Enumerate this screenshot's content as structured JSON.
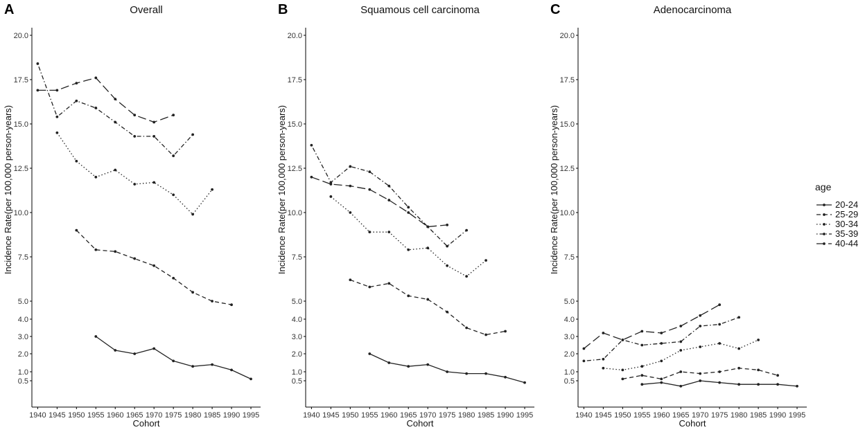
{
  "chart_data": [
    {
      "type": "line",
      "letter": "A",
      "title": "Overall",
      "xlabel": "Cohort",
      "ylabel": "Incidence Rate(per 100,000 person-years)",
      "x_ticks": [
        1940,
        1945,
        1950,
        1955,
        1960,
        1965,
        1970,
        1975,
        1980,
        1985,
        1990,
        1995
      ],
      "y_ticks": [
        0.5,
        1.0,
        2.0,
        3.0,
        4.0,
        5.0,
        7.5,
        10.0,
        12.5,
        15.0,
        17.5,
        20.0
      ],
      "y_tick_labels": [
        "0.5",
        "1.0",
        "2.0",
        "3.0",
        "4.0",
        "5.0",
        "7.5",
        "10.0",
        "12.5",
        "15.0",
        "17.5",
        "20.0"
      ],
      "series": [
        {
          "name": "20-24",
          "x": [
            1955,
            1960,
            1965,
            1970,
            1975,
            1980,
            1985,
            1990,
            1995
          ],
          "values": [
            3.0,
            2.2,
            2.0,
            2.3,
            1.6,
            1.3,
            1.4,
            1.1,
            0.6
          ]
        },
        {
          "name": "25-29",
          "x": [
            1950,
            1955,
            1960,
            1965,
            1970,
            1975,
            1980,
            1985,
            1990
          ],
          "values": [
            9.0,
            7.9,
            7.8,
            7.4,
            7.0,
            6.3,
            5.5,
            5.0,
            4.8
          ]
        },
        {
          "name": "30-34",
          "x": [
            1945,
            1950,
            1955,
            1960,
            1965,
            1970,
            1975,
            1980,
            1985
          ],
          "values": [
            14.5,
            12.9,
            12.0,
            12.4,
            11.6,
            11.7,
            11.0,
            9.9,
            11.3
          ]
        },
        {
          "name": "35-39",
          "x": [
            1940,
            1945,
            1950,
            1955,
            1960,
            1965,
            1970,
            1975,
            1980
          ],
          "values": [
            18.4,
            15.4,
            16.3,
            15.9,
            15.1,
            14.3,
            14.3,
            13.2,
            14.4
          ]
        },
        {
          "name": "40-44",
          "x": [
            1940,
            1945,
            1950,
            1955,
            1960,
            1965,
            1970,
            1975
          ],
          "values": [
            16.9,
            16.9,
            17.3,
            17.6,
            16.4,
            15.5,
            15.1,
            15.5
          ]
        }
      ]
    },
    {
      "type": "line",
      "letter": "B",
      "title": "Squamous cell carcinoma",
      "xlabel": "Cohort",
      "ylabel": "Incidence Rate(per 100,000 person-years)",
      "x_ticks": [
        1940,
        1945,
        1950,
        1955,
        1960,
        1965,
        1970,
        1975,
        1980,
        1985,
        1990,
        1995
      ],
      "y_ticks": [
        0.5,
        1.0,
        2.0,
        3.0,
        4.0,
        5.0,
        7.5,
        10.0,
        12.5,
        15.0,
        17.5,
        20.0
      ],
      "y_tick_labels": [
        "0.5",
        "1.0",
        "2.0",
        "3.0",
        "4.0",
        "5.0",
        "7.5",
        "10.0",
        "12.5",
        "15.0",
        "17.5",
        "20.0"
      ],
      "series": [
        {
          "name": "20-24",
          "x": [
            1955,
            1960,
            1965,
            1970,
            1975,
            1980,
            1985,
            1990,
            1995
          ],
          "values": [
            2.0,
            1.5,
            1.3,
            1.4,
            1.0,
            0.9,
            0.9,
            0.7,
            0.4
          ]
        },
        {
          "name": "25-29",
          "x": [
            1950,
            1955,
            1960,
            1965,
            1970,
            1975,
            1980,
            1985,
            1990
          ],
          "values": [
            6.2,
            5.8,
            6.0,
            5.3,
            5.1,
            4.4,
            3.5,
            3.1,
            3.3
          ]
        },
        {
          "name": "30-34",
          "x": [
            1945,
            1950,
            1955,
            1960,
            1965,
            1970,
            1975,
            1980,
            1985
          ],
          "values": [
            10.9,
            10.0,
            8.9,
            8.9,
            7.9,
            8.0,
            7.0,
            6.4,
            7.3
          ]
        },
        {
          "name": "35-39",
          "x": [
            1940,
            1945,
            1950,
            1955,
            1960,
            1965,
            1970,
            1975,
            1980
          ],
          "values": [
            13.8,
            11.7,
            12.6,
            12.3,
            11.5,
            10.3,
            9.2,
            8.1,
            9.0
          ]
        },
        {
          "name": "40-44",
          "x": [
            1940,
            1945,
            1950,
            1955,
            1960,
            1965,
            1970,
            1975
          ],
          "values": [
            12.0,
            11.6,
            11.5,
            11.3,
            10.7,
            10.0,
            9.2,
            9.3
          ]
        }
      ]
    },
    {
      "type": "line",
      "letter": "C",
      "title": "Adenocarcinoma",
      "xlabel": "Cohort",
      "ylabel": "Incidence Rate(per 100,000 person-years)",
      "x_ticks": [
        1940,
        1945,
        1950,
        1955,
        1960,
        1965,
        1970,
        1975,
        1980,
        1985,
        1990,
        1995
      ],
      "y_ticks": [
        0.5,
        1.0,
        2.0,
        3.0,
        4.0,
        5.0,
        7.5,
        10.0,
        12.5,
        15.0,
        17.5,
        20.0
      ],
      "y_tick_labels": [
        "0.5",
        "1.0",
        "2.0",
        "3.0",
        "4.0",
        "5.0",
        "7.5",
        "10.0",
        "12.5",
        "15.0",
        "17.5",
        "20.0"
      ],
      "series": [
        {
          "name": "20-24",
          "x": [
            1955,
            1960,
            1965,
            1970,
            1975,
            1980,
            1985,
            1990,
            1995
          ],
          "values": [
            0.3,
            0.4,
            0.2,
            0.5,
            0.4,
            0.3,
            0.3,
            0.3,
            0.2
          ]
        },
        {
          "name": "25-29",
          "x": [
            1950,
            1955,
            1960,
            1965,
            1970,
            1975,
            1980,
            1985,
            1990
          ],
          "values": [
            0.6,
            0.8,
            0.6,
            1.0,
            0.9,
            1.0,
            1.2,
            1.1,
            0.8
          ]
        },
        {
          "name": "30-34",
          "x": [
            1945,
            1950,
            1955,
            1960,
            1965,
            1970,
            1975,
            1980,
            1985
          ],
          "values": [
            1.2,
            1.1,
            1.3,
            1.6,
            2.2,
            2.4,
            2.6,
            2.3,
            2.8
          ]
        },
        {
          "name": "35-39",
          "x": [
            1940,
            1945,
            1950,
            1955,
            1960,
            1965,
            1970,
            1975,
            1980
          ],
          "values": [
            1.6,
            1.7,
            2.8,
            2.5,
            2.6,
            2.7,
            3.6,
            3.7,
            4.1
          ]
        },
        {
          "name": "40-44",
          "x": [
            1940,
            1945,
            1950,
            1955,
            1960,
            1965,
            1970,
            1975
          ],
          "values": [
            2.3,
            3.2,
            2.8,
            3.3,
            3.2,
            3.6,
            4.2,
            4.8
          ]
        }
      ]
    }
  ],
  "legend": {
    "title": "age",
    "items": [
      {
        "label": "20-24",
        "dash": "solid"
      },
      {
        "label": "25-29",
        "dash": "dashed"
      },
      {
        "label": "30-34",
        "dash": "dotted"
      },
      {
        "label": "35-39",
        "dash": "dotdash"
      },
      {
        "label": "40-44",
        "dash": "longdash"
      }
    ]
  },
  "styles": {
    "line_color": "#222222",
    "axis_color": "#000000"
  }
}
